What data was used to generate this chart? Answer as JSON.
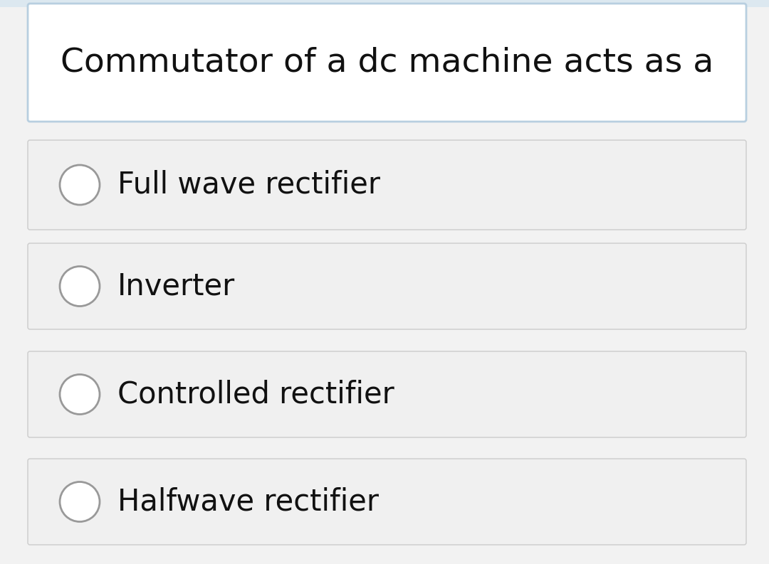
{
  "title": "Commutator of a dc machine acts as a",
  "options": [
    "Full wave rectifier",
    "Inverter",
    "Controlled rectifier",
    "Halfwave rectifier"
  ],
  "outer_bg_color": "#dce8f0",
  "inner_bg_color": "#f2f2f2",
  "title_box_bg": "#ffffff",
  "title_box_border": "#b8cfe0",
  "option_box_bg": "#f0f0f0",
  "option_box_border": "#cccccc",
  "title_fontsize": 34,
  "option_fontsize": 30,
  "text_color": "#111111",
  "circle_color": "#999999",
  "figsize": [
    10.8,
    7.93
  ],
  "dpi": 100
}
